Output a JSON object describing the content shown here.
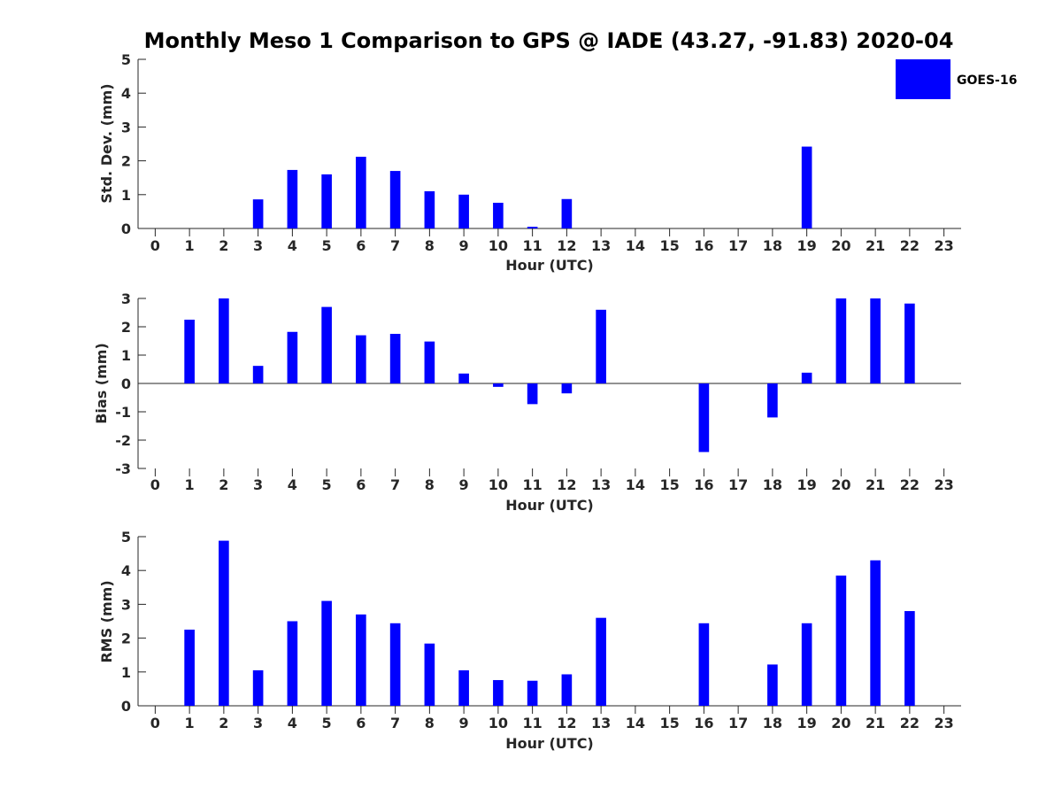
{
  "title": "Monthly Meso 1 Comparison to GPS @ IADE (43.27, -91.83) 2020-04",
  "colors": {
    "bar": "#0000ff",
    "axis": "#262626"
  },
  "legend": {
    "label": "GOES-16",
    "placement": "top-right"
  },
  "chart_data": [
    {
      "type": "bar",
      "xlabel": "Hour (UTC)",
      "ylabel": "Std. Dev. (mm)",
      "ylim": [
        0,
        5
      ],
      "yticks": [
        0,
        1,
        2,
        3,
        4,
        5
      ],
      "xlim": [
        -0.5,
        23.5
      ],
      "grid": false,
      "categories": [
        "0",
        "1",
        "2",
        "3",
        "4",
        "5",
        "6",
        "7",
        "8",
        "9",
        "10",
        "11",
        "12",
        "13",
        "14",
        "15",
        "16",
        "17",
        "18",
        "19",
        "20",
        "21",
        "22",
        "23"
      ],
      "series": [
        {
          "name": "GOES-16",
          "values": [
            null,
            0,
            0,
            0.86,
            1.73,
            1.6,
            2.12,
            1.7,
            1.1,
            1.0,
            0.76,
            0.05,
            0.87,
            0,
            null,
            null,
            0,
            null,
            0,
            2.42,
            0,
            0,
            0,
            null
          ]
        }
      ]
    },
    {
      "type": "bar",
      "xlabel": "Hour (UTC)",
      "ylabel": "Bias (mm)",
      "ylim": [
        -3,
        3
      ],
      "yticks": [
        -3,
        -2,
        -1,
        0,
        1,
        2,
        3
      ],
      "xlim": [
        -0.5,
        23.5
      ],
      "grid": false,
      "categories": [
        "0",
        "1",
        "2",
        "3",
        "4",
        "5",
        "6",
        "7",
        "8",
        "9",
        "10",
        "11",
        "12",
        "13",
        "14",
        "15",
        "16",
        "17",
        "18",
        "19",
        "20",
        "21",
        "22",
        "23"
      ],
      "series": [
        {
          "name": "GOES-16",
          "values": [
            null,
            2.25,
            3.0,
            0.62,
            1.82,
            2.7,
            1.7,
            1.75,
            1.48,
            0.35,
            -0.12,
            -0.73,
            -0.35,
            2.6,
            null,
            null,
            -2.42,
            null,
            -1.2,
            0.38,
            3.0,
            3.0,
            2.82,
            null
          ]
        }
      ]
    },
    {
      "type": "bar",
      "xlabel": "Hour (UTC)",
      "ylabel": "RMS (mm)",
      "ylim": [
        0,
        5
      ],
      "yticks": [
        0,
        1,
        2,
        3,
        4,
        5
      ],
      "xlim": [
        -0.5,
        23.5
      ],
      "grid": false,
      "categories": [
        "0",
        "1",
        "2",
        "3",
        "4",
        "5",
        "6",
        "7",
        "8",
        "9",
        "10",
        "11",
        "12",
        "13",
        "14",
        "15",
        "16",
        "17",
        "18",
        "19",
        "20",
        "21",
        "22",
        "23"
      ],
      "series": [
        {
          "name": "GOES-16",
          "values": [
            null,
            2.25,
            4.88,
            1.05,
            2.5,
            3.1,
            2.7,
            2.44,
            1.84,
            1.05,
            0.76,
            0.74,
            0.93,
            2.6,
            null,
            null,
            2.44,
            null,
            1.22,
            2.44,
            3.85,
            4.3,
            2.8,
            null
          ]
        }
      ]
    }
  ]
}
